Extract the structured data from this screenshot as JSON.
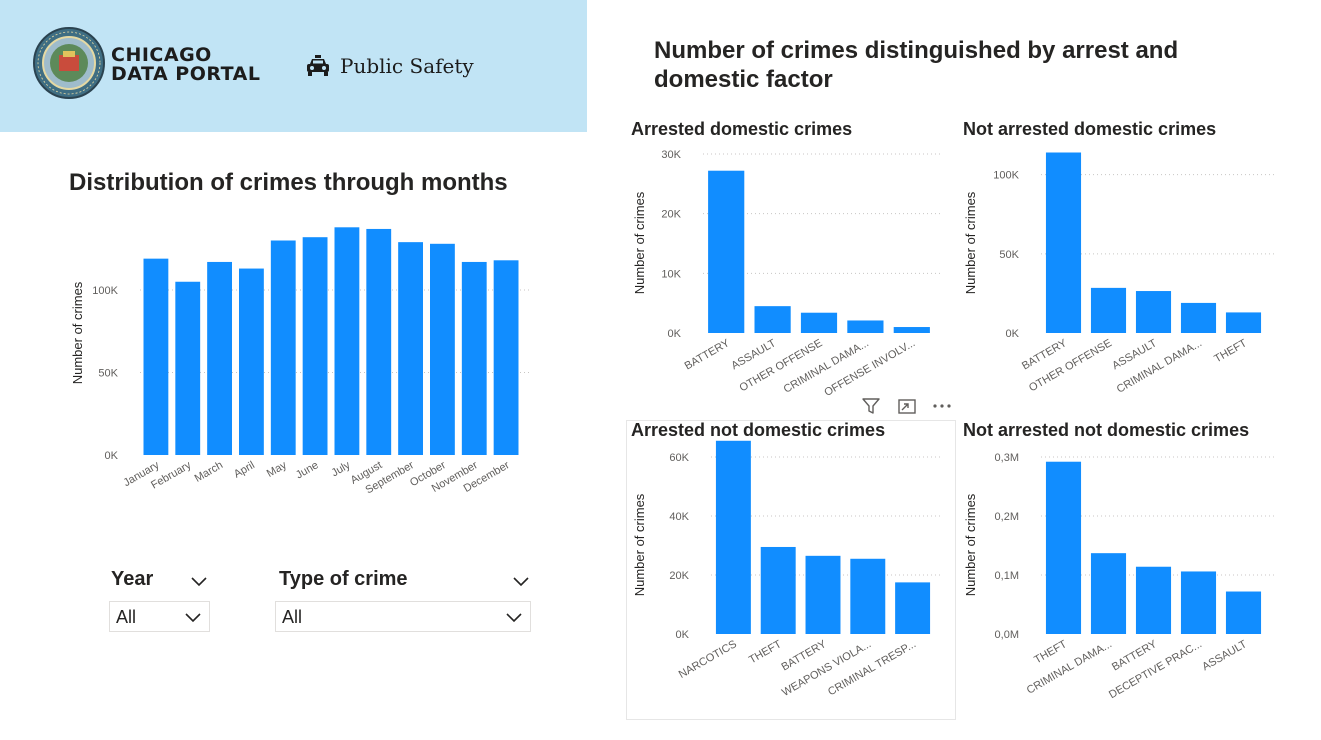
{
  "header": {
    "seal_alt_text": "CITY OF CHICAGO · INCORPORATED 4th MARCH 1837",
    "logo_line1": "CHICAGO",
    "logo_line2": "DATA PORTAL",
    "section_label": "Public Safety",
    "background": "#c1e4f5"
  },
  "icons": {
    "section": "police-car-icon",
    "filter": "filter-icon",
    "focus": "focus-mode-icon",
    "more": "more-options-icon",
    "dropdown": "chevron-down-icon"
  },
  "colors": {
    "bar": "#118dff",
    "gridline": "#c8c6c4",
    "axis_text": "#605e5c"
  },
  "left_panel": {
    "title": "Distribution of crimes through months",
    "slicers": [
      {
        "title": "Year",
        "value": "All"
      },
      {
        "title": "Type of crime",
        "value": "All"
      }
    ]
  },
  "right_panel": {
    "title_line1": "Number of crimes distinguished by arrest and",
    "title_line2": "domestic factor"
  },
  "chart_data": [
    {
      "id": "months",
      "type": "bar",
      "title": "Distribution of crimes through months",
      "xlabel": "",
      "ylabel": "Number of crimes",
      "categories": [
        "January",
        "February",
        "March",
        "April",
        "May",
        "June",
        "July",
        "August",
        "September",
        "October",
        "November",
        "December"
      ],
      "values": [
        119000,
        105000,
        117000,
        113000,
        130000,
        132000,
        138000,
        137000,
        129000,
        128000,
        117000,
        118000
      ],
      "ylim": [
        0,
        140000
      ],
      "yticks": [
        "0K",
        "50K",
        "100K"
      ],
      "grid": true,
      "legend": "none"
    },
    {
      "id": "arrested_domestic",
      "type": "bar",
      "title": "Arrested domestic crimes",
      "xlabel": "",
      "ylabel": "Number of crimes",
      "categories": [
        "BATTERY",
        "ASSAULT",
        "OTHER OFFENSE",
        "CRIMINAL DAMA...",
        "OFFENSE INVOLV..."
      ],
      "values": [
        27200,
        4500,
        3400,
        2100,
        1000
      ],
      "ylim": [
        0,
        30000
      ],
      "yticks": [
        "0K",
        "10K",
        "20K",
        "30K"
      ],
      "grid": true,
      "legend": "none"
    },
    {
      "id": "not_arrested_domestic",
      "type": "bar",
      "title": "Not arrested domestic crimes",
      "xlabel": "",
      "ylabel": "Number of crimes",
      "categories": [
        "BATTERY",
        "OTHER OFFENSE",
        "ASSAULT",
        "CRIMINAL DAMA...",
        "THEFT"
      ],
      "values": [
        114000,
        28500,
        26500,
        19000,
        13000
      ],
      "ylim": [
        0,
        120000
      ],
      "yticks": [
        "0K",
        "50K",
        "100K"
      ],
      "grid": true,
      "legend": "none"
    },
    {
      "id": "arrested_not_domestic",
      "type": "bar",
      "title": "Arrested not domestic crimes",
      "xlabel": "",
      "ylabel": "Number of crimes",
      "categories": [
        "NARCOTICS",
        "THEFT",
        "BATTERY",
        "WEAPONS VIOLA...",
        "CRIMINAL TRESP..."
      ],
      "values": [
        65500,
        29500,
        26500,
        25500,
        17500
      ],
      "ylim": [
        0,
        60000
      ],
      "yticks": [
        "0K",
        "20K",
        "40K",
        "60K"
      ],
      "grid": true,
      "legend": "none"
    },
    {
      "id": "not_arrested_not_domestic",
      "type": "bar",
      "title": "Not arrested not domestic crimes",
      "xlabel": "",
      "ylabel": "Number of crimes",
      "categories": [
        "THEFT",
        "CRIMINAL DAMA...",
        "BATTERY",
        "DECEPTIVE PRAC...",
        "ASSAULT"
      ],
      "values": [
        292000,
        137000,
        114000,
        106000,
        72000
      ],
      "ylim": [
        0,
        300000
      ],
      "yticks": [
        "0,0M",
        "0,1M",
        "0,2M",
        "0,3M"
      ],
      "grid": true,
      "legend": "none"
    }
  ]
}
